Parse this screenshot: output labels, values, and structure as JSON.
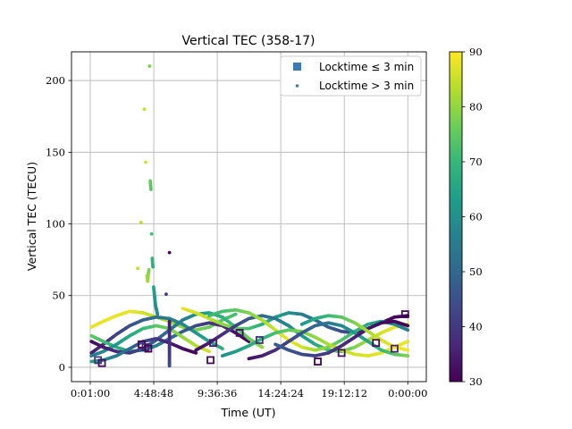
{
  "chart_data": {
    "type": "scatter",
    "title": "Vertical TEC (358-17)",
    "xlabel": "Time (UT)",
    "ylabel": "Vertical TEC (TECU)",
    "xlim_hours": [
      -1.4,
      25.4
    ],
    "ylim": [
      -10,
      220
    ],
    "grid": true,
    "legend_placement": "top-right",
    "x_ticks": [
      {
        "hours": 0.0167,
        "label": "0:01:00"
      },
      {
        "hours": 4.8133,
        "label": "4:48:48"
      },
      {
        "hours": 9.61,
        "label": "9:36:36"
      },
      {
        "hours": 14.4067,
        "label": "14:24:24"
      },
      {
        "hours": 19.2033,
        "label": "19:12:12"
      },
      {
        "hours": 24.0,
        "label": "0:00:00"
      }
    ],
    "y_ticks": [
      0,
      50,
      100,
      150,
      200
    ],
    "legend": [
      {
        "label": "Locktime ≤ 3 min",
        "marker": "square",
        "color": "#3b7ab5"
      },
      {
        "label": "Locktime > 3 min",
        "marker": "dot",
        "color": "#3b7ab5"
      }
    ],
    "colorbar": {
      "min": 30,
      "max": 90,
      "ticks": [
        30,
        40,
        50,
        60,
        70,
        80,
        90
      ],
      "colormap": "viridis",
      "stops": [
        "#440154",
        "#482878",
        "#3e4989",
        "#31688e",
        "#26828e",
        "#1f9e89",
        "#35b779",
        "#6ece58",
        "#b5de2b",
        "#fde725"
      ]
    },
    "series": [
      {
        "locktime": "long",
        "points": [
          [
            0.1,
            28,
            88
          ],
          [
            1.0,
            32,
            88
          ],
          [
            2.0,
            36,
            88
          ],
          [
            3.0,
            39,
            88
          ],
          [
            4.0,
            38,
            86
          ],
          [
            5.0,
            35,
            84
          ],
          [
            6.0,
            32,
            82
          ],
          [
            7.0,
            28,
            80
          ],
          [
            8.0,
            26,
            78
          ],
          [
            9.0,
            28,
            76
          ],
          [
            10.0,
            33,
            74
          ],
          [
            11.0,
            37,
            72
          ]
        ]
      },
      {
        "locktime": "long",
        "points": [
          [
            0.1,
            10,
            35
          ],
          [
            1.0,
            16,
            38
          ],
          [
            2.0,
            23,
            42
          ],
          [
            3.0,
            29,
            45
          ],
          [
            4.0,
            33,
            48
          ],
          [
            5.0,
            35,
            52
          ],
          [
            6.0,
            34,
            55
          ],
          [
            7.0,
            30,
            58
          ],
          [
            8.0,
            24,
            62
          ],
          [
            9.0,
            18,
            65
          ],
          [
            10.0,
            13,
            68
          ]
        ]
      },
      {
        "locktime": "long",
        "points": [
          [
            0.1,
            22,
            75
          ],
          [
            1.0,
            18,
            72
          ],
          [
            2.0,
            14,
            68
          ],
          [
            3.0,
            11,
            64
          ],
          [
            4.0,
            12,
            60
          ],
          [
            5.0,
            15,
            56
          ],
          [
            6.0,
            20,
            52
          ],
          [
            7.0,
            25,
            48
          ],
          [
            8.0,
            29,
            44
          ],
          [
            9.0,
            31,
            40
          ],
          [
            10.0,
            29,
            36
          ],
          [
            11.0,
            24,
            33
          ],
          [
            12.0,
            18,
            31
          ]
        ]
      },
      {
        "locktime": "long",
        "points": [
          [
            0.1,
            8,
            55
          ],
          [
            1.0,
            11,
            58
          ],
          [
            2.0,
            16,
            62
          ],
          [
            3.0,
            22,
            66
          ],
          [
            4.0,
            27,
            70
          ],
          [
            5.0,
            29,
            74
          ],
          [
            6.0,
            27,
            77
          ],
          [
            7.0,
            21,
            80
          ],
          [
            8.0,
            15,
            83
          ],
          [
            9.0,
            11,
            86
          ]
        ]
      },
      {
        "locktime": "long",
        "points": [
          [
            0.1,
            18,
            32
          ],
          [
            1.0,
            14,
            34
          ],
          [
            2.0,
            11,
            37
          ],
          [
            3.0,
            10,
            40
          ],
          [
            4.0,
            13,
            44
          ],
          [
            5.0,
            19,
            48
          ],
          [
            6.0,
            26,
            52
          ],
          [
            7.0,
            33,
            56
          ],
          [
            8.0,
            37,
            60
          ],
          [
            9.0,
            38,
            64
          ],
          [
            10.0,
            35,
            68
          ],
          [
            11.0,
            28,
            72
          ],
          [
            12.0,
            20,
            76
          ],
          [
            13.0,
            14,
            80
          ]
        ]
      },
      {
        "locktime": "long",
        "points": [
          [
            0.1,
            4,
            65
          ],
          [
            1.0,
            5,
            60
          ],
          [
            2.0,
            8,
            55
          ],
          [
            3.0,
            13,
            50
          ],
          [
            4.0,
            18,
            45
          ],
          [
            5.0,
            20,
            40
          ],
          [
            6.0,
            17,
            35
          ],
          [
            7.0,
            13,
            32
          ],
          [
            8.0,
            10,
            31
          ]
        ]
      },
      {
        "locktime": "long",
        "points": [
          [
            7.0,
            41,
            88
          ],
          [
            8.0,
            38,
            86
          ],
          [
            9.0,
            34,
            84
          ],
          [
            10.0,
            30,
            80
          ],
          [
            11.0,
            27,
            76
          ],
          [
            12.0,
            27,
            72
          ],
          [
            13.0,
            30,
            68
          ],
          [
            14.0,
            35,
            64
          ],
          [
            15.0,
            38,
            60
          ],
          [
            16.0,
            37,
            56
          ],
          [
            17.0,
            33,
            52
          ],
          [
            18.0,
            28,
            48
          ],
          [
            19.0,
            25,
            44
          ],
          [
            20.0,
            24,
            40
          ],
          [
            21.0,
            27,
            36
          ],
          [
            22.0,
            31,
            33
          ],
          [
            23.0,
            35,
            31
          ],
          [
            24.0,
            36,
            30
          ]
        ]
      },
      {
        "locktime": "long",
        "points": [
          [
            8.0,
            12,
            32
          ],
          [
            9.0,
            17,
            35
          ],
          [
            10.0,
            23,
            38
          ],
          [
            11.0,
            29,
            42
          ],
          [
            12.0,
            34,
            46
          ],
          [
            13.0,
            36,
            50
          ],
          [
            14.0,
            34,
            54
          ],
          [
            15.0,
            29,
            58
          ],
          [
            16.0,
            22,
            62
          ],
          [
            17.0,
            16,
            66
          ],
          [
            18.0,
            12,
            70
          ],
          [
            19.0,
            11,
            74
          ],
          [
            20.0,
            14,
            78
          ],
          [
            21.0,
            19,
            82
          ],
          [
            22.0,
            24,
            86
          ],
          [
            23.0,
            28,
            88
          ],
          [
            24.0,
            30,
            89
          ]
        ]
      },
      {
        "locktime": "long",
        "points": [
          [
            9.0,
            36,
            70
          ],
          [
            10.0,
            39,
            72
          ],
          [
            11.0,
            40,
            75
          ],
          [
            12.0,
            38,
            78
          ],
          [
            13.0,
            33,
            82
          ],
          [
            14.0,
            26,
            85
          ],
          [
            15.0,
            19,
            88
          ],
          [
            16.0,
            14,
            86
          ],
          [
            17.0,
            12,
            82
          ],
          [
            18.0,
            14,
            78
          ],
          [
            19.0,
            19,
            74
          ],
          [
            20.0,
            25,
            70
          ],
          [
            21.0,
            30,
            66
          ],
          [
            22.0,
            32,
            62
          ],
          [
            23.0,
            30,
            58
          ],
          [
            24.0,
            26,
            55
          ]
        ]
      },
      {
        "locktime": "long",
        "points": [
          [
            10.0,
            8,
            60
          ],
          [
            11.0,
            11,
            63
          ],
          [
            12.0,
            15,
            66
          ],
          [
            13.0,
            20,
            69
          ],
          [
            14.0,
            24,
            72
          ],
          [
            15.0,
            26,
            75
          ],
          [
            16.0,
            25,
            78
          ],
          [
            17.0,
            21,
            80
          ],
          [
            18.0,
            16,
            82
          ],
          [
            19.0,
            12,
            84
          ],
          [
            20.0,
            9,
            86
          ],
          [
            21.0,
            8,
            87
          ],
          [
            22.0,
            10,
            88
          ],
          [
            23.0,
            14,
            88
          ],
          [
            24.0,
            18,
            88
          ]
        ]
      },
      {
        "locktime": "long",
        "points": [
          [
            12.0,
            6,
            33
          ],
          [
            13.0,
            8,
            35
          ],
          [
            14.0,
            12,
            38
          ],
          [
            15.0,
            18,
            42
          ],
          [
            16.0,
            24,
            46
          ],
          [
            17.0,
            29,
            50
          ],
          [
            18.0,
            31,
            54
          ],
          [
            19.0,
            29,
            58
          ],
          [
            20.0,
            24,
            62
          ],
          [
            21.0,
            18,
            66
          ],
          [
            22.0,
            12,
            70
          ],
          [
            23.0,
            9,
            74
          ],
          [
            24.0,
            8,
            78
          ]
        ]
      },
      {
        "locktime": "long",
        "points": [
          [
            14.0,
            16,
            48
          ],
          [
            15.0,
            12,
            46
          ],
          [
            16.0,
            9,
            44
          ],
          [
            17.0,
            8,
            42
          ],
          [
            18.0,
            10,
            40
          ],
          [
            19.0,
            15,
            38
          ],
          [
            20.0,
            21,
            36
          ],
          [
            21.0,
            27,
            34
          ],
          [
            22.0,
            31,
            32
          ],
          [
            23.0,
            32,
            31
          ],
          [
            24.0,
            29,
            30
          ]
        ]
      },
      {
        "locktime": "long",
        "points": [
          [
            16.0,
            30,
            62
          ],
          [
            17.0,
            34,
            66
          ],
          [
            18.0,
            36,
            70
          ],
          [
            19.0,
            35,
            74
          ],
          [
            20.0,
            31,
            78
          ],
          [
            21.0,
            25,
            82
          ],
          [
            22.0,
            19,
            86
          ],
          [
            23.0,
            14,
            88
          ],
          [
            24.0,
            12,
            89
          ]
        ]
      },
      {
        "locktime": "long",
        "points": [
          [
            3.6,
            69,
            84
          ],
          [
            3.85,
            101,
            84
          ],
          [
            4.1,
            180,
            85
          ],
          [
            4.2,
            143,
            86
          ],
          [
            4.3,
            64,
            84
          ],
          [
            4.35,
            60,
            82
          ],
          [
            4.4,
            65,
            80
          ],
          [
            4.45,
            68,
            78
          ],
          [
            4.5,
            210,
            78
          ],
          [
            4.55,
            130,
            76
          ],
          [
            4.6,
            124,
            74
          ],
          [
            4.65,
            93,
            72
          ],
          [
            4.7,
            76,
            70
          ],
          [
            4.75,
            70,
            68
          ],
          [
            4.8,
            56,
            66
          ],
          [
            4.85,
            52,
            64
          ],
          [
            4.9,
            47,
            62
          ],
          [
            4.95,
            43,
            60
          ],
          [
            5.1,
            37,
            58
          ]
        ]
      },
      {
        "locktime": "long",
        "points": [
          [
            5.75,
            51,
            40
          ],
          [
            6.0,
            80,
            32
          ],
          [
            6.0,
            32,
            34
          ],
          [
            6.0,
            26,
            36
          ],
          [
            6.0,
            18,
            38
          ],
          [
            6.0,
            10,
            40
          ],
          [
            6.0,
            4,
            42
          ],
          [
            6.0,
            1,
            44
          ]
        ]
      },
      {
        "locktime": "short",
        "points": [
          [
            0.6,
            5,
            40
          ],
          [
            0.9,
            3,
            32
          ],
          [
            3.9,
            16,
            31
          ],
          [
            4.2,
            14,
            35
          ],
          [
            4.4,
            13,
            30
          ],
          [
            9.1,
            5,
            31
          ],
          [
            9.3,
            17,
            34
          ],
          [
            11.3,
            24,
            32
          ],
          [
            12.8,
            19,
            38
          ],
          [
            17.2,
            4,
            30
          ],
          [
            19.0,
            10,
            33
          ],
          [
            21.6,
            17,
            31
          ],
          [
            23.0,
            13,
            36
          ],
          [
            23.8,
            37,
            31
          ]
        ]
      }
    ]
  }
}
